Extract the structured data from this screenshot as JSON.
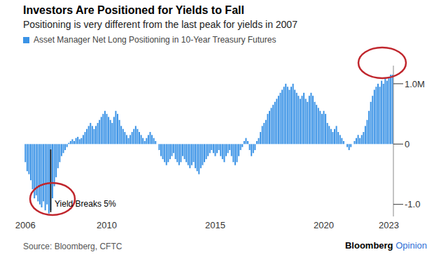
{
  "chart_data": {
    "type": "bar",
    "title": "Investors Are Positioned for Yields to Fall",
    "subtitle": "Positioning is very different from the last peak for yields in 2007",
    "categories": [
      "2006",
      null,
      null,
      null,
      null,
      null,
      null,
      null,
      null,
      null,
      null,
      null,
      null,
      null,
      null,
      null,
      null,
      null,
      null,
      null,
      null,
      null,
      null,
      null,
      null,
      null,
      null,
      null,
      null,
      null,
      null,
      null,
      null,
      null,
      null,
      null,
      null,
      null,
      null,
      null,
      null,
      null,
      null,
      null,
      null,
      "2010",
      null,
      null,
      null,
      null,
      null,
      null,
      null,
      null,
      null,
      null,
      null,
      null,
      null,
      null,
      null,
      null,
      null,
      null,
      null,
      null,
      null,
      null,
      null,
      null,
      null,
      null,
      null,
      null,
      null,
      null,
      null,
      null,
      null,
      null,
      null,
      null,
      null,
      null,
      null,
      null,
      null,
      null,
      null,
      null,
      null,
      null,
      null,
      null,
      null,
      null,
      null,
      null,
      null,
      null,
      null,
      null,
      null,
      null,
      null,
      "2015",
      null,
      null,
      null,
      null,
      null,
      null,
      null,
      null,
      null,
      null,
      null,
      null,
      null,
      null,
      null,
      null,
      null,
      null,
      null,
      null,
      null,
      null,
      null,
      null,
      null,
      null,
      null,
      null,
      null,
      null,
      null,
      null,
      null,
      null,
      null,
      null,
      null,
      null,
      null,
      null,
      null,
      null,
      null,
      null,
      null,
      null,
      null,
      null,
      null,
      null,
      null,
      null,
      null,
      null,
      null,
      null,
      null,
      null,
      null,
      "2020",
      null,
      null,
      null,
      null,
      null,
      null,
      null,
      null,
      null,
      null,
      null,
      null,
      null,
      null,
      null,
      null,
      null,
      null,
      null,
      null,
      null,
      null,
      null,
      null,
      null,
      null,
      null,
      null,
      null,
      null,
      null,
      null,
      null,
      null,
      null,
      "2023",
      null,
      null
    ],
    "series": [
      {
        "name": "Asset Manager Net Long Positioning in 10-Year Treasury Futures",
        "color": "#3b93e6",
        "values": [
          -0.3,
          -0.45,
          -0.5,
          -0.6,
          -0.75,
          -0.9,
          -0.85,
          -0.95,
          -1.0,
          -1.05,
          -0.95,
          -1.1,
          -1.0,
          -1.15,
          -1.1,
          -0.9,
          -0.7,
          -0.55,
          -0.4,
          -0.3,
          -0.2,
          -0.15,
          -0.1,
          -0.05,
          0.02,
          0.05,
          0.08,
          0.05,
          0.1,
          0.12,
          0.08,
          0.1,
          0.15,
          0.2,
          0.25,
          0.3,
          0.35,
          0.3,
          0.25,
          0.3,
          0.35,
          0.4,
          0.45,
          0.5,
          0.55,
          0.5,
          0.45,
          0.4,
          0.35,
          0.45,
          0.55,
          0.5,
          0.4,
          0.3,
          0.25,
          0.2,
          0.15,
          0.1,
          0.15,
          0.2,
          0.25,
          0.3,
          0.25,
          0.2,
          0.15,
          0.1,
          0.05,
          0.1,
          0.15,
          0.2,
          0.15,
          0.1,
          0.05,
          0.0,
          -0.1,
          -0.2,
          -0.25,
          -0.3,
          -0.35,
          -0.3,
          -0.25,
          -0.2,
          -0.15,
          -0.25,
          -0.3,
          -0.35,
          -0.3,
          -0.2,
          -0.25,
          -0.3,
          -0.35,
          -0.4,
          -0.35,
          -0.3,
          -0.4,
          -0.45,
          -0.5,
          -0.4,
          -0.35,
          -0.3,
          -0.25,
          -0.2,
          -0.15,
          -0.1,
          -0.15,
          -0.2,
          -0.15,
          -0.1,
          -0.2,
          -0.25,
          -0.3,
          -0.2,
          -0.15,
          -0.1,
          -0.2,
          -0.3,
          -0.35,
          -0.3,
          -0.2,
          -0.1,
          -0.05,
          0.05,
          0.1,
          0.05,
          -0.1,
          -0.2,
          -0.15,
          -0.1,
          0.05,
          0.1,
          0.2,
          0.3,
          0.35,
          0.4,
          0.5,
          0.55,
          0.6,
          0.65,
          0.7,
          0.75,
          0.8,
          0.85,
          0.9,
          0.95,
          1.0,
          0.95,
          0.9,
          0.95,
          1.0,
          0.9,
          0.85,
          0.8,
          0.75,
          0.8,
          0.85,
          0.75,
          0.7,
          0.8,
          0.85,
          0.8,
          0.7,
          0.65,
          0.6,
          0.55,
          0.5,
          0.55,
          0.5,
          0.35,
          0.3,
          0.25,
          0.2,
          0.25,
          0.3,
          0.2,
          0.15,
          0.1,
          0.05,
          0.0,
          -0.05,
          -0.1,
          -0.05,
          0.0,
          0.05,
          0.1,
          0.15,
          0.1,
          0.15,
          0.2,
          0.3,
          0.4,
          0.55,
          0.7,
          0.8,
          0.9,
          0.95,
          1.0,
          0.95,
          1.05,
          1.0,
          1.1,
          1.05,
          1.1,
          1.15,
          1.15
        ]
      }
    ],
    "ylim": [
      -1.2,
      1.3
    ],
    "yticks": [
      {
        "value": -1,
        "label": "-1.0"
      },
      0,
      {
        "value": 1,
        "label": "1.0M"
      }
    ],
    "grid": false,
    "annotations": [
      "Yield Breaks 5%"
    ],
    "source": "Source: Bloomberg, CFTC",
    "credit": "Bloomberg Opinion"
  }
}
